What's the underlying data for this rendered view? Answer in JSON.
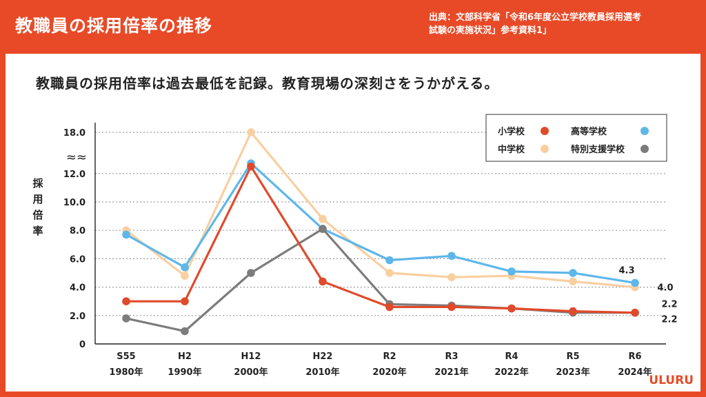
{
  "header": {
    "title": "教職員の採用倍率の推移",
    "source_line1": "出典：文部科学省「令和6年度公立学校教員採用選考",
    "source_line2": "試験の実施状況」参考資料1」"
  },
  "headline": "教職員の採用倍率は過去最低を記録。教育現場の深刻さをうかがえる。",
  "logo": "ULURU",
  "chart_data": {
    "type": "line",
    "categories": [
      "S55",
      "H2",
      "H12",
      "H22",
      "R2",
      "R3",
      "R4",
      "R5",
      "R6"
    ],
    "category_years": [
      "1980年",
      "1990年",
      "2000年",
      "2010年",
      "2020年",
      "2021年",
      "2022年",
      "2023年",
      "2024年"
    ],
    "ylabel": "採用倍率",
    "y_ticks": [
      "0",
      "2.0",
      "4.0",
      "6.0",
      "8.0",
      "10.0",
      "12.0",
      "18.0"
    ],
    "axis_break": "≈≈",
    "ylim": [
      0,
      18
    ],
    "grid": true,
    "legend_position": "top-right",
    "series": [
      {
        "name": "小学校",
        "color": "#e04a2a",
        "values": [
          3.0,
          3.0,
          12.5,
          4.4,
          2.6,
          2.6,
          2.5,
          2.3,
          2.2
        ]
      },
      {
        "name": "中学校",
        "color": "#f9cfa0",
        "values": [
          8.0,
          4.8,
          18.0,
          8.8,
          5.0,
          4.7,
          4.8,
          4.4,
          4.0
        ]
      },
      {
        "name": "高等学校",
        "color": "#5db7ea",
        "values": [
          7.7,
          5.4,
          13.0,
          8.1,
          5.9,
          6.2,
          5.1,
          5.0,
          4.3
        ]
      },
      {
        "name": "特別支援学校",
        "color": "#7c7c7c",
        "values": [
          1.8,
          0.9,
          5.0,
          8.1,
          2.8,
          2.7,
          2.5,
          2.2,
          2.2
        ]
      }
    ],
    "end_labels": [
      {
        "series": "高等学校",
        "text": "4.3"
      },
      {
        "series": "中学校",
        "text": "4.0"
      },
      {
        "series": "特別支援学校",
        "text": "2.2"
      },
      {
        "series": "小学校",
        "text": "2.2"
      }
    ]
  }
}
